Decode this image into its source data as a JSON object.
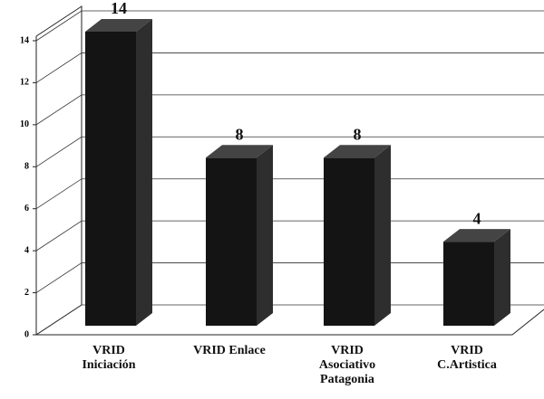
{
  "chart_data": {
    "type": "bar3d",
    "categories": [
      "VRID\nIniciación",
      "VRID Enlace",
      "VRID\nAsociativo\nPatagonia",
      "VRID\nC.Artistica"
    ],
    "values": [
      14,
      8,
      8,
      4
    ],
    "color": "#141414",
    "ylim": [
      0,
      14
    ],
    "yticks": [
      0,
      2,
      4,
      6,
      8,
      10,
      12,
      14
    ],
    "grid": true
  }
}
